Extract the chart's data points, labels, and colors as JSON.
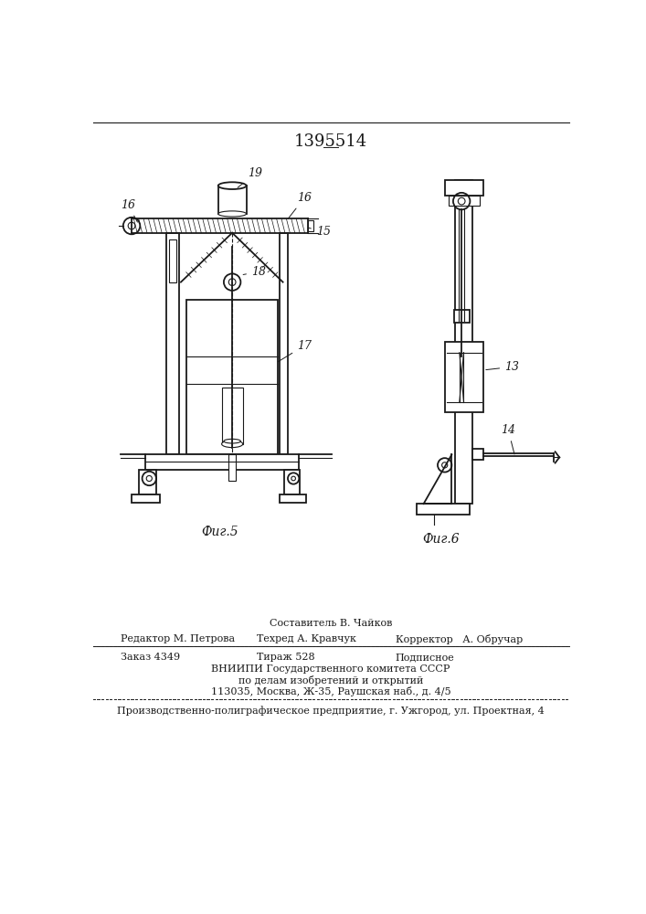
{
  "patent_number": "1395514",
  "background_color": "#ffffff",
  "line_color": "#1a1a1a",
  "fig5_caption": "Фиг.5",
  "fig6_caption": "Фиг.6",
  "footer_line1_left": "Редактор М. Петрова",
  "footer_line1_center_top": "Составитель В. Чайков",
  "footer_line1_center": "Техред А. Кравчук",
  "footer_line1_right": "Корректор   А. Обручар",
  "footer_line2_left": "Заказ 4349",
  "footer_line2_center": "Тираж 528",
  "footer_line2_right": "Подписное",
  "footer_line3": "ВНИИПИ Государственного комитета СССР",
  "footer_line4": "по делам изобретений и открытий",
  "footer_line5": "113035, Москва, Ж-35, Раушская наб., д. 4/5",
  "footer_line6": "Производственно-полиграфическое предприятие, г. Ужгород, ул. Проектная, 4"
}
